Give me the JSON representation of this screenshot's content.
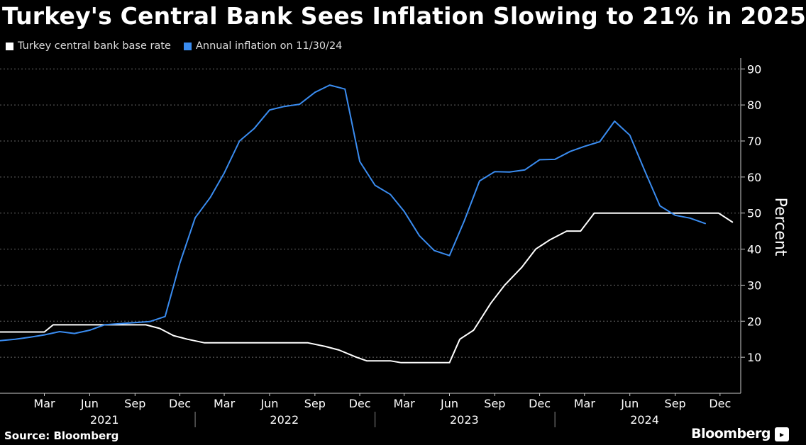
{
  "chart_data": {
    "type": "line",
    "title": "Turkey's Central Bank Sees Inflation Slowing to 21% in 2025",
    "ylabel": "Percent",
    "xlabel": "",
    "ylim": [
      0,
      93
    ],
    "yticks": [
      10,
      20,
      30,
      40,
      50,
      60,
      70,
      80,
      90
    ],
    "xlim": [
      "2020-12-01",
      "2025-01-12"
    ],
    "month_ticks": [
      "Mar",
      "Jun",
      "Sep",
      "Dec",
      "Mar",
      "Jun",
      "Sep",
      "Dec",
      "Mar",
      "Jun",
      "Sep",
      "Dec",
      "Mar",
      "Jun",
      "Sep",
      "Dec"
    ],
    "month_tick_dates": [
      "2021-03-01",
      "2021-06-01",
      "2021-09-01",
      "2021-12-01",
      "2022-03-01",
      "2022-06-01",
      "2022-09-01",
      "2022-12-01",
      "2023-03-01",
      "2023-06-01",
      "2023-09-01",
      "2023-12-01",
      "2024-03-01",
      "2024-06-01",
      "2024-09-01",
      "2024-12-01"
    ],
    "year_labels": [
      "2021",
      "2022",
      "2023",
      "2024"
    ],
    "year_label_dates": [
      "2021-07-01",
      "2022-07-01",
      "2023-07-01",
      "2024-07-01"
    ],
    "year_dividers": [
      "2022-01-01",
      "2023-01-01",
      "2024-01-01"
    ],
    "grid": true,
    "legend_position": "top-left",
    "series": [
      {
        "name": "Turkey central bank base rate",
        "color": "#ffffff",
        "points": [
          [
            "2020-12-01",
            17
          ],
          [
            "2021-03-01",
            17
          ],
          [
            "2021-03-19",
            19
          ],
          [
            "2021-09-23",
            19
          ],
          [
            "2021-10-21",
            18
          ],
          [
            "2021-11-18",
            16
          ],
          [
            "2021-12-16",
            15
          ],
          [
            "2022-01-20",
            14
          ],
          [
            "2022-08-18",
            14
          ],
          [
            "2022-09-22",
            13
          ],
          [
            "2022-10-20",
            12
          ],
          [
            "2022-11-24",
            10
          ],
          [
            "2022-12-15",
            9
          ],
          [
            "2023-02-01",
            9
          ],
          [
            "2023-02-23",
            8.5
          ],
          [
            "2023-06-01",
            8.5
          ],
          [
            "2023-06-22",
            15
          ],
          [
            "2023-07-20",
            17.5
          ],
          [
            "2023-08-24",
            25
          ],
          [
            "2023-09-21",
            30
          ],
          [
            "2023-10-26",
            35
          ],
          [
            "2023-11-23",
            40
          ],
          [
            "2023-12-21",
            42.5
          ],
          [
            "2024-01-25",
            45
          ],
          [
            "2024-02-22",
            45
          ],
          [
            "2024-03-21",
            50
          ],
          [
            "2024-11-28",
            50
          ],
          [
            "2024-12-26",
            47.5
          ]
        ]
      },
      {
        "name": "Annual inflation on 11/30/24",
        "color": "#3a8cf0",
        "points": [
          [
            "2020-12-01",
            14.6
          ],
          [
            "2021-01-01",
            15.0
          ],
          [
            "2021-02-01",
            15.6
          ],
          [
            "2021-03-01",
            16.2
          ],
          [
            "2021-04-01",
            17.1
          ],
          [
            "2021-05-01",
            16.6
          ],
          [
            "2021-06-01",
            17.5
          ],
          [
            "2021-07-01",
            19.0
          ],
          [
            "2021-08-01",
            19.3
          ],
          [
            "2021-09-01",
            19.6
          ],
          [
            "2021-10-01",
            19.9
          ],
          [
            "2021-11-01",
            21.3
          ],
          [
            "2021-12-01",
            36.1
          ],
          [
            "2022-01-01",
            48.7
          ],
          [
            "2022-02-01",
            54.4
          ],
          [
            "2022-03-01",
            61.1
          ],
          [
            "2022-04-01",
            70.0
          ],
          [
            "2022-05-01",
            73.5
          ],
          [
            "2022-06-01",
            78.6
          ],
          [
            "2022-07-01",
            79.6
          ],
          [
            "2022-08-01",
            80.2
          ],
          [
            "2022-09-01",
            83.5
          ],
          [
            "2022-10-01",
            85.5
          ],
          [
            "2022-11-01",
            84.4
          ],
          [
            "2022-12-01",
            64.3
          ],
          [
            "2023-01-01",
            57.7
          ],
          [
            "2023-02-01",
            55.2
          ],
          [
            "2023-03-01",
            50.5
          ],
          [
            "2023-04-01",
            43.7
          ],
          [
            "2023-05-01",
            39.6
          ],
          [
            "2023-06-01",
            38.2
          ],
          [
            "2023-07-01",
            47.8
          ],
          [
            "2023-08-01",
            58.9
          ],
          [
            "2023-09-01",
            61.5
          ],
          [
            "2023-10-01",
            61.4
          ],
          [
            "2023-11-01",
            62.0
          ],
          [
            "2023-12-01",
            64.8
          ],
          [
            "2024-01-01",
            64.9
          ],
          [
            "2024-02-01",
            67.1
          ],
          [
            "2024-03-01",
            68.5
          ],
          [
            "2024-04-01",
            69.8
          ],
          [
            "2024-05-01",
            75.5
          ],
          [
            "2024-06-01",
            71.6
          ],
          [
            "2024-07-01",
            61.8
          ],
          [
            "2024-08-01",
            52.0
          ],
          [
            "2024-09-01",
            49.4
          ],
          [
            "2024-10-01",
            48.6
          ],
          [
            "2024-11-01",
            47.1
          ]
        ]
      }
    ]
  },
  "source": "Source: Bloomberg",
  "brand": "Bloomberg"
}
